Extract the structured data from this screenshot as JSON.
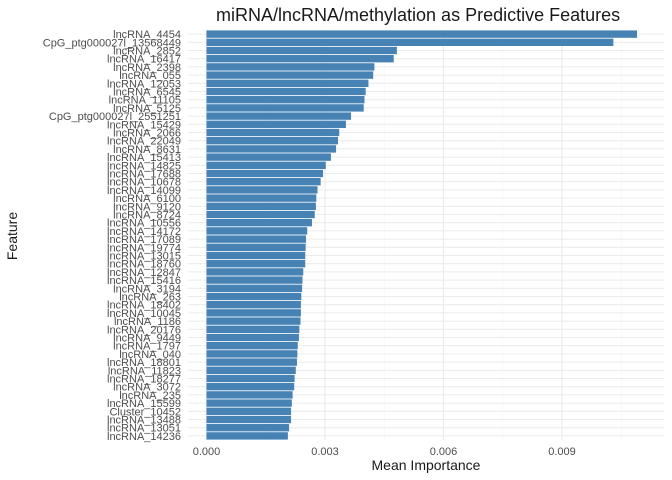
{
  "chart_data": {
    "type": "bar",
    "orientation": "horizontal",
    "title": "miRNA/lncRNA/methylation as Predictive Features",
    "xlabel": "Mean Importance",
    "ylabel": "Feature",
    "xlim": [
      0,
      0.0112
    ],
    "xticks": [
      0.0,
      0.003,
      0.006,
      0.009
    ],
    "xtick_labels": [
      "0.000",
      "0.003",
      "0.006",
      "0.009"
    ],
    "grid": true,
    "bar_color": "#4682b4",
    "categories": [
      "lncRNA_4454",
      "CpG_ptg000027l_13568449",
      "lncRNA_2852",
      "lncRNA_16417",
      "lncRNA_2398",
      "lncRNA_055",
      "lncRNA_12053",
      "lncRNA_6545",
      "lncRNA_11105",
      "lncRNA_5125",
      "CpG_ptg000027l_2551251",
      "lncRNA_15429",
      "lncRNA_2066",
      "lncRNA_22049",
      "lncRNA_8631",
      "lncRNA_15413",
      "lncRNA_14825",
      "lncRNA_17688",
      "lncRNA_10678",
      "lncRNA_14099",
      "lncRNA_6100",
      "lncRNA_9120",
      "lncRNA_8724",
      "lncRNA_10556",
      "lncRNA_14172",
      "lncRNA_17089",
      "lncRNA_19774",
      "lncRNA_13015",
      "lncRNA_18760",
      "lncRNA_12847",
      "lncRNA_15416",
      "lncRNA_3194",
      "lncRNA_263",
      "lncRNA_18402",
      "lncRNA_10045",
      "lncRNA_1186",
      "lncRNA_20176",
      "lncRNA_9449",
      "lncRNA_1797",
      "lncRNA_040",
      "lncRNA_18801",
      "lncRNA_11823",
      "lncRNA_18277",
      "lncRNA_3072",
      "lncRNA_235",
      "lncRNA_15599",
      "Cluster_10452",
      "lncRNA_13488",
      "lncRNA_13051",
      "lncRNA_14236"
    ],
    "values": [
      0.0109,
      0.0103,
      0.00482,
      0.00474,
      0.00425,
      0.00422,
      0.0041,
      0.00403,
      0.004,
      0.00398,
      0.00366,
      0.00353,
      0.00336,
      0.00333,
      0.00328,
      0.00315,
      0.00302,
      0.00295,
      0.00289,
      0.00281,
      0.00278,
      0.00277,
      0.00274,
      0.00267,
      0.00255,
      0.00252,
      0.00251,
      0.0025,
      0.0025,
      0.00245,
      0.00243,
      0.00242,
      0.0024,
      0.00239,
      0.00239,
      0.00238,
      0.00235,
      0.00234,
      0.00231,
      0.0023,
      0.00229,
      0.00226,
      0.00223,
      0.00222,
      0.00218,
      0.00216,
      0.00214,
      0.00214,
      0.00209,
      0.00206
    ]
  }
}
